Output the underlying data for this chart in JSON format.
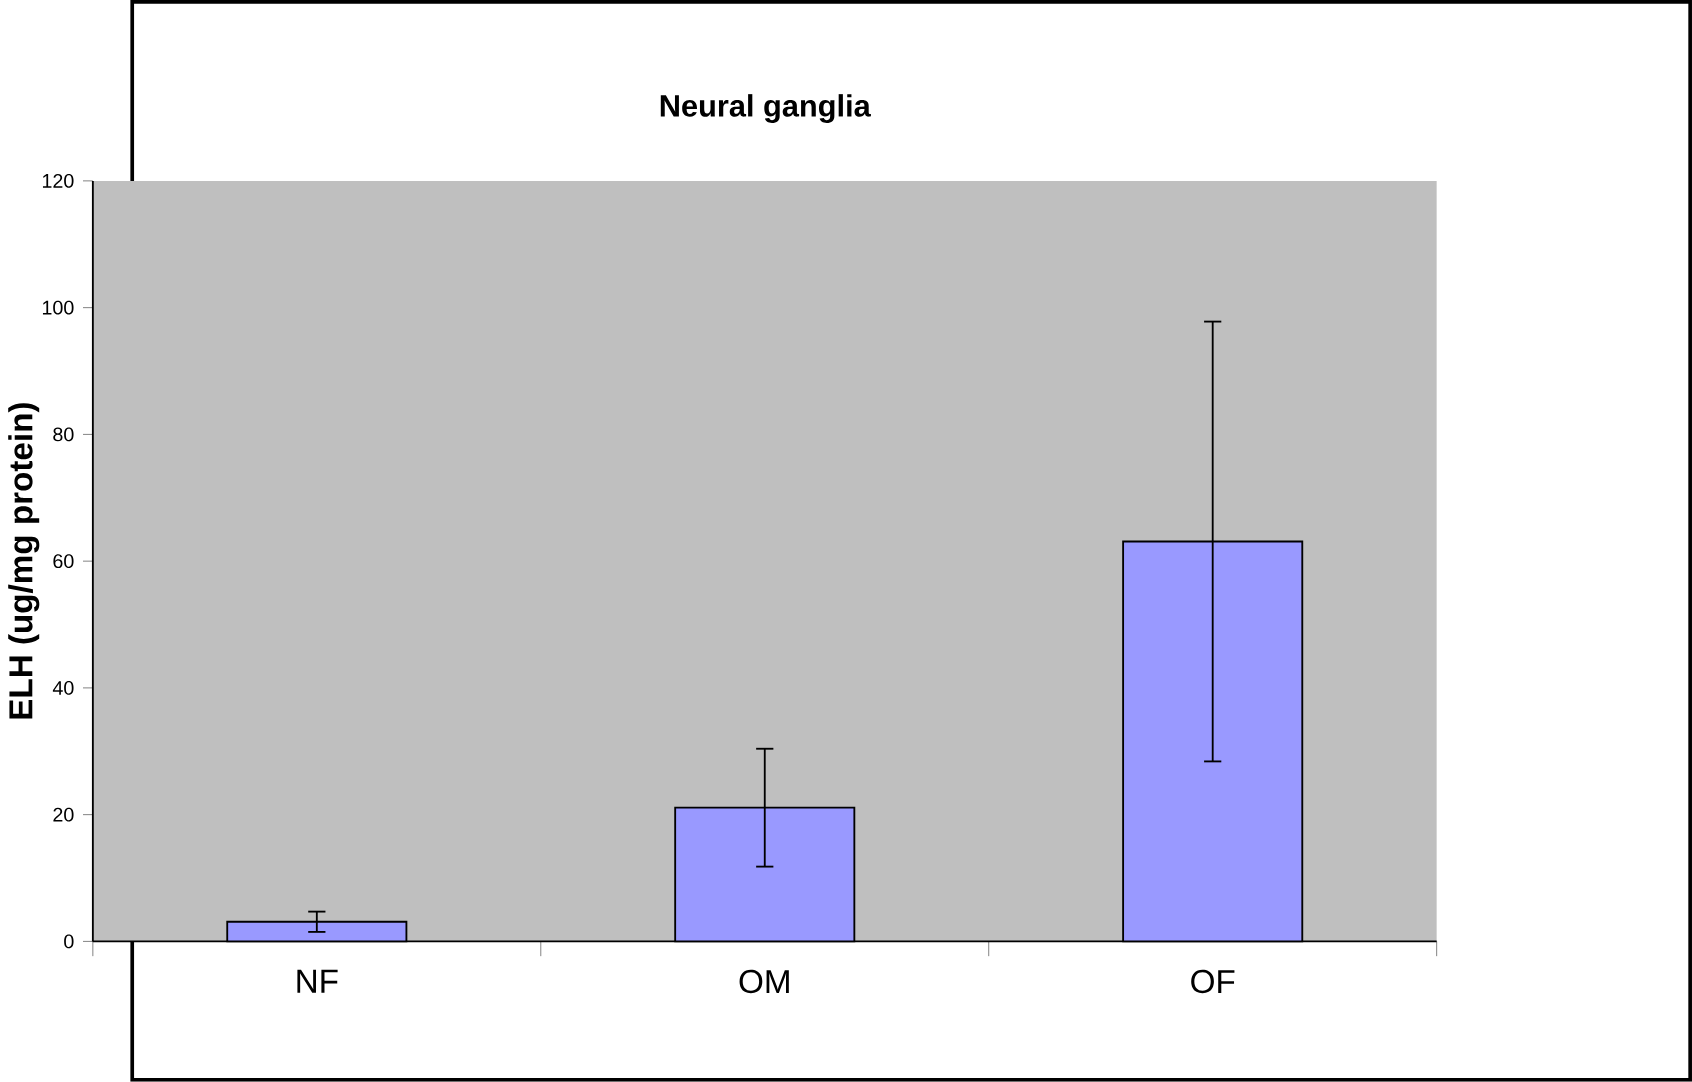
{
  "chart_data": {
    "type": "bar",
    "title": "Neural ganglia",
    "ylabel": "ELH (ug/mg protein)",
    "categories": [
      "NF",
      "OM",
      "OF"
    ],
    "values": [
      3.1,
      21.1,
      63.1
    ],
    "errors": [
      1.6,
      9.3,
      34.7
    ],
    "color": "#9999ff",
    "ylim": [
      0,
      120
    ],
    "yticks": [
      0,
      20,
      40,
      60,
      80,
      100,
      120
    ]
  }
}
